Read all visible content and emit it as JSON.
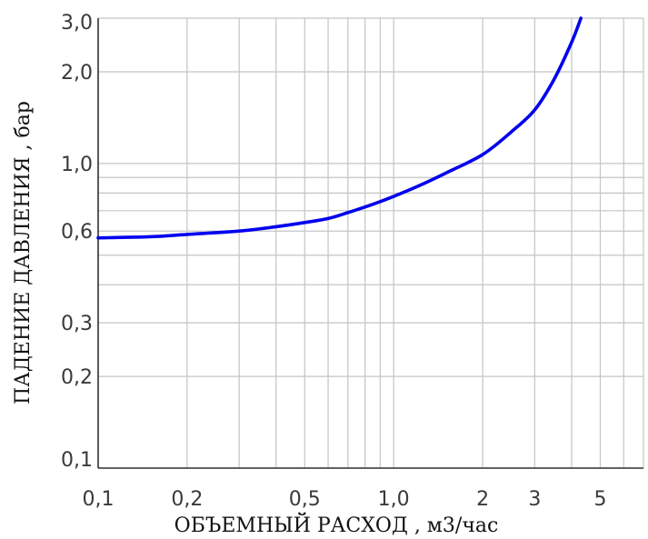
{
  "chart_data": {
    "type": "line",
    "x_scale": "log",
    "y_scale": "log",
    "xlabel": "ОБЪЕМНЫЙ РАСХОД , м3/час",
    "ylabel": "ПАДЕНИЕ ДАВЛЕНИЯ , бар",
    "xlim": [
      0.1,
      7
    ],
    "ylim": [
      0.1,
      3.0
    ],
    "grid": true,
    "x_ticks": [
      {
        "value": 0.1,
        "label": "0,1"
      },
      {
        "value": 0.2,
        "label": "0,2"
      },
      {
        "value": 0.5,
        "label": "0,5"
      },
      {
        "value": 1.0,
        "label": "1,0"
      },
      {
        "value": 2,
        "label": "2"
      },
      {
        "value": 3,
        "label": "3"
      },
      {
        "value": 5,
        "label": "5"
      }
    ],
    "y_ticks": [
      {
        "value": 0.1,
        "label": "0,1"
      },
      {
        "value": 0.2,
        "label": "0,2"
      },
      {
        "value": 0.3,
        "label": "0,3"
      },
      {
        "value": 0.6,
        "label": "0,6"
      },
      {
        "value": 1.0,
        "label": "1,0"
      },
      {
        "value": 2.0,
        "label": "2,0"
      },
      {
        "value": 3.0,
        "label": "3,0"
      }
    ],
    "x_grid": [
      0.1,
      0.2,
      0.3,
      0.4,
      0.5,
      0.6,
      0.7,
      0.8,
      0.9,
      1,
      2,
      3,
      4,
      5,
      6,
      7
    ],
    "y_grid": [
      0.1,
      0.2,
      0.3,
      0.4,
      0.5,
      0.6,
      0.7,
      0.8,
      0.9,
      1,
      2,
      3
    ],
    "series": [
      {
        "color": "#0000ee",
        "x": [
          0.1,
          0.15,
          0.2,
          0.3,
          0.4,
          0.5,
          0.6,
          0.7,
          0.8,
          0.9,
          1.0,
          1.2,
          1.5,
          2.0,
          2.5,
          3.0,
          3.5,
          4.0,
          4.3
        ],
        "y": [
          0.57,
          0.575,
          0.585,
          0.6,
          0.62,
          0.64,
          0.66,
          0.69,
          0.72,
          0.75,
          0.78,
          0.84,
          0.93,
          1.07,
          1.27,
          1.5,
          1.9,
          2.5,
          3.0
        ]
      }
    ]
  }
}
